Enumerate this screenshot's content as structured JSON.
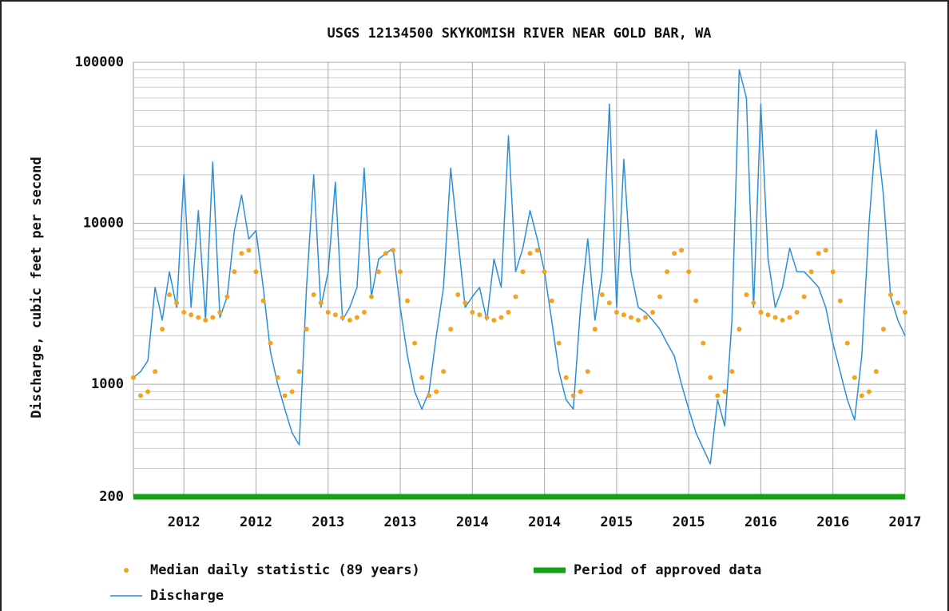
{
  "chart_data": {
    "type": "line",
    "title": "USGS 12134500 SKYKOMISH RIVER NEAR GOLD BAR, WA",
    "y_label": "Discharge, cubic feet per second",
    "log_y": true,
    "grid": true,
    "legend": "bottom",
    "ylim": [
      200,
      100000
    ],
    "yticks": [
      200,
      1000,
      10000,
      100000
    ],
    "y_minor_ticks": [
      300,
      400,
      500,
      600,
      700,
      800,
      900,
      2000,
      3000,
      4000,
      5000,
      6000,
      7000,
      8000,
      9000,
      20000,
      30000,
      40000,
      50000,
      60000,
      70000,
      80000,
      90000
    ],
    "xlim": [
      2011.65,
      2017.0
    ],
    "xticks": [
      {
        "value": 2012.0,
        "label": "2012"
      },
      {
        "value": 2012.5,
        "label": "2012"
      },
      {
        "value": 2013.0,
        "label": "2013"
      },
      {
        "value": 2013.5,
        "label": "2013"
      },
      {
        "value": 2014.0,
        "label": "2014"
      },
      {
        "value": 2014.5,
        "label": "2014"
      },
      {
        "value": 2015.0,
        "label": "2015"
      },
      {
        "value": 2015.5,
        "label": "2015"
      },
      {
        "value": 2016.0,
        "label": "2016"
      },
      {
        "value": 2016.5,
        "label": "2016"
      },
      2017
    ],
    "x": [
      2011.65,
      2011.7,
      2011.75,
      2011.8,
      2011.85,
      2011.9,
      2011.95,
      2012,
      2012.05,
      2012.1,
      2012.15,
      2012.2,
      2012.25,
      2012.3,
      2012.35,
      2012.4,
      2012.45,
      2012.5,
      2012.55,
      2012.6,
      2012.65,
      2012.7,
      2012.75,
      2012.8,
      2012.85,
      2012.9,
      2012.95,
      2013,
      2013.05,
      2013.1,
      2013.15,
      2013.2,
      2013.25,
      2013.3,
      2013.35,
      2013.4,
      2013.45,
      2013.5,
      2013.55,
      2013.6,
      2013.65,
      2013.7,
      2013.75,
      2013.8,
      2013.85,
      2013.9,
      2013.95,
      2014,
      2014.05,
      2014.1,
      2014.15,
      2014.2,
      2014.25,
      2014.3,
      2014.35,
      2014.4,
      2014.45,
      2014.5,
      2014.55,
      2014.6,
      2014.65,
      2014.7,
      2014.75,
      2014.8,
      2014.85,
      2014.9,
      2014.95,
      2015,
      2015.05,
      2015.1,
      2015.15,
      2015.2,
      2015.25,
      2015.3,
      2015.35,
      2015.4,
      2015.45,
      2015.5,
      2015.55,
      2015.6,
      2015.65,
      2015.7,
      2015.75,
      2015.8,
      2015.85,
      2015.9,
      2015.95,
      2016,
      2016.05,
      2016.1,
      2016.15,
      2016.2,
      2016.25,
      2016.3,
      2016.35,
      2016.4,
      2016.45,
      2016.5,
      2016.55,
      2016.6,
      2016.65,
      2016.7,
      2016.75,
      2016.8,
      2016.85,
      2016.9,
      2016.95,
      2017
    ],
    "series": [
      {
        "name": "Median daily statistic (89 years)",
        "color": "#f5a31e",
        "style": "dots",
        "values": [
          1100,
          850,
          900,
          1200,
          2200,
          3600,
          3200,
          2800,
          2700,
          2600,
          2500,
          2600,
          2800,
          3500,
          5000,
          6500,
          6800,
          5000,
          3300,
          1800,
          1100,
          850,
          900,
          1200,
          2200,
          3600,
          3200,
          2800,
          2700,
          2600,
          2500,
          2600,
          2800,
          3500,
          5000,
          6500,
          6800,
          5000,
          3300,
          1800,
          1100,
          850,
          900,
          1200,
          2200,
          3600,
          3200,
          2800,
          2700,
          2600,
          2500,
          2600,
          2800,
          3500,
          5000,
          6500,
          6800,
          5000,
          3300,
          1800,
          1100,
          850,
          900,
          1200,
          2200,
          3600,
          3200,
          2800,
          2700,
          2600,
          2500,
          2600,
          2800,
          3500,
          5000,
          6500,
          6800,
          5000,
          3300,
          1800,
          1100,
          850,
          900,
          1200,
          2200,
          3600,
          3200,
          2800,
          2700,
          2600,
          2500,
          2600,
          2800,
          3500,
          5000,
          6500,
          6800,
          5000,
          3300,
          1800,
          1100,
          850,
          900,
          1200,
          2200,
          3600,
          3200,
          2800
        ]
      },
      {
        "name": "Period of approved data",
        "color": "#13a313",
        "style": "bar",
        "x": [
          2011.65,
          2017.0
        ],
        "values": [
          200,
          200
        ]
      },
      {
        "name": "Discharge",
        "color": "#2b8fd8",
        "style": "line",
        "values": [
          1100,
          1200,
          1400,
          4000,
          2500,
          5000,
          3000,
          20000,
          3000,
          12000,
          2500,
          24000,
          2600,
          3500,
          9000,
          15000,
          8000,
          9000,
          4000,
          1600,
          1000,
          700,
          500,
          420,
          4000,
          20000,
          3000,
          5000,
          18000,
          2500,
          3000,
          4000,
          22000,
          3500,
          6000,
          6500,
          7000,
          3000,
          1500,
          900,
          700,
          900,
          2000,
          4000,
          22000,
          8000,
          3000,
          3500,
          4000,
          2500,
          6000,
          4000,
          35000,
          5000,
          7000,
          12000,
          8000,
          5000,
          2500,
          1200,
          800,
          700,
          3000,
          8000,
          2500,
          5000,
          55000,
          3000,
          25000,
          5000,
          3000,
          2800,
          2500,
          2200,
          1800,
          1500,
          1000,
          700,
          500,
          400,
          320,
          800,
          550,
          2500,
          90000,
          60000,
          3000,
          55000,
          6000,
          3000,
          4000,
          7000,
          5000,
          5000,
          4500,
          4000,
          3000,
          1800,
          1200,
          800,
          600,
          1500,
          10000,
          38000,
          15000,
          3500,
          2500,
          2000
        ]
      }
    ]
  }
}
